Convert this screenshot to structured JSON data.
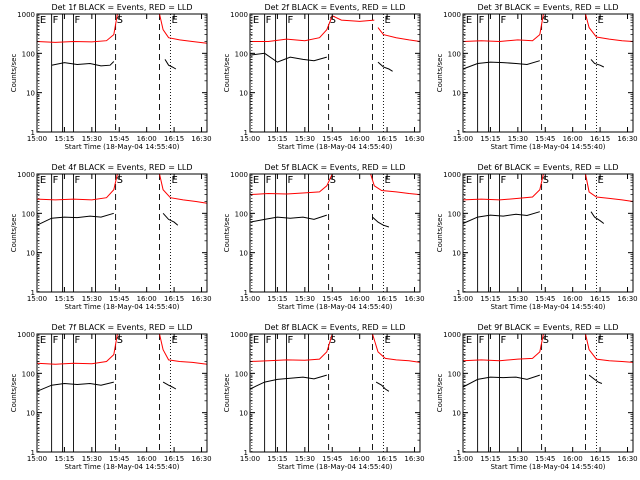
{
  "colors": {
    "events": "#000000",
    "lld": "#ff0000",
    "axes": "#000000",
    "background": "#ffffff"
  },
  "common": {
    "xlabel": "Start Time (18-May-04 14:55:40)",
    "ylabel": "Counts/sec",
    "x_ticks": [
      "15:00",
      "15:15",
      "15:30",
      "15:45",
      "16:00",
      "16:15",
      "16:30"
    ],
    "y_ticks": [
      "1",
      "10",
      "100",
      "1000"
    ],
    "yscale": "log",
    "ylim": [
      1,
      1000
    ],
    "xlim": [
      "15:00",
      "16:33"
    ],
    "markers": [
      {
        "label": "E",
        "time": "15:01",
        "style": "dotted"
      },
      {
        "label": "F",
        "time": "15:08",
        "style": "solid"
      },
      {
        "label": "F",
        "time": "15:20",
        "style": "solid"
      },
      {
        "label": "S",
        "time": "15:43",
        "style": "dashed"
      },
      {
        "label": "E",
        "time": "16:13",
        "style": "dotted"
      }
    ],
    "extra_lines": [
      {
        "time": "15:14",
        "style": "solid"
      },
      {
        "time": "15:32",
        "style": "solid"
      },
      {
        "time": "16:07",
        "style": "dashed"
      }
    ]
  },
  "chart_data": [
    {
      "type": "line",
      "title": "Det 1f BLACK = Events, RED = LLD",
      "series": [
        {
          "name": "Events",
          "color": "#000000",
          "segments": [
            {
              "x": [
                "15:08",
                "15:15",
                "15:22",
                "15:29",
                "15:35",
                "15:40",
                "15:42"
              ],
              "y": [
                50,
                58,
                52,
                55,
                48,
                50,
                62
              ]
            },
            {
              "x": [
                "16:10",
                "16:12",
                "16:14",
                "16:16"
              ],
              "y": [
                70,
                50,
                45,
                40
              ]
            }
          ]
        },
        {
          "name": "LLD",
          "color": "#ff0000",
          "segments": [
            {
              "x": [
                "15:00",
                "15:10",
                "15:20",
                "15:30",
                "15:38",
                "15:42",
                "15:44"
              ],
              "y": [
                200,
                190,
                200,
                195,
                210,
                300,
                1000
              ]
            },
            {
              "x": [
                "16:07",
                "16:09",
                "16:12",
                "16:18",
                "16:25",
                "16:33"
              ],
              "y": [
                1000,
                400,
                250,
                220,
                200,
                180
              ]
            }
          ]
        }
      ]
    },
    {
      "type": "line",
      "title": "Det 2f BLACK = Events, RED = LLD",
      "series": [
        {
          "name": "Events",
          "color": "#000000",
          "segments": [
            {
              "x": [
                "15:00",
                "15:08",
                "15:15",
                "15:22",
                "15:29",
                "15:35",
                "15:42"
              ],
              "y": [
                90,
                100,
                60,
                80,
                70,
                65,
                80
              ]
            },
            {
              "x": [
                "16:10",
                "16:13",
                "16:16",
                "16:18"
              ],
              "y": [
                60,
                45,
                40,
                35
              ]
            }
          ]
        },
        {
          "name": "LLD",
          "color": "#ff0000",
          "segments": [
            {
              "x": [
                "15:00",
                "15:10",
                "15:20",
                "15:30",
                "15:38",
                "15:42",
                "15:45",
                "15:50",
                "16:00",
                "16:08"
              ],
              "y": [
                200,
                200,
                230,
                210,
                250,
                400,
                900,
                700,
                650,
                700
              ]
            },
            {
              "x": [
                "16:10",
                "16:13",
                "16:20",
                "16:27",
                "16:33"
              ],
              "y": [
                450,
                300,
                250,
                220,
                200
              ]
            }
          ]
        }
      ]
    },
    {
      "type": "line",
      "title": "Det 3f BLACK = Events, RED = LLD",
      "series": [
        {
          "name": "Events",
          "color": "#000000",
          "segments": [
            {
              "x": [
                "15:00",
                "15:08",
                "15:15",
                "15:22",
                "15:29",
                "15:35",
                "15:42"
              ],
              "y": [
                40,
                55,
                60,
                58,
                55,
                52,
                65
              ]
            },
            {
              "x": [
                "16:10",
                "16:12",
                "16:15",
                "16:17"
              ],
              "y": [
                70,
                55,
                50,
                45
              ]
            }
          ]
        },
        {
          "name": "LLD",
          "color": "#ff0000",
          "segments": [
            {
              "x": [
                "15:00",
                "15:10",
                "15:20",
                "15:30",
                "15:38",
                "15:42",
                "15:44"
              ],
              "y": [
                200,
                210,
                200,
                220,
                210,
                300,
                1000
              ]
            },
            {
              "x": [
                "16:07",
                "16:09",
                "16:13",
                "16:20",
                "16:27",
                "16:33"
              ],
              "y": [
                1000,
                450,
                260,
                230,
                210,
                200
              ]
            }
          ]
        }
      ]
    },
    {
      "type": "line",
      "title": "Det 4f BLACK = Events, RED = LLD",
      "series": [
        {
          "name": "Events",
          "color": "#000000",
          "segments": [
            {
              "x": [
                "15:00",
                "15:08",
                "15:15",
                "15:22",
                "15:29",
                "15:35",
                "15:42"
              ],
              "y": [
                50,
                75,
                80,
                78,
                85,
                80,
                100
              ]
            },
            {
              "x": [
                "16:09",
                "16:12",
                "16:15",
                "16:17"
              ],
              "y": [
                100,
                70,
                60,
                50
              ]
            }
          ]
        },
        {
          "name": "LLD",
          "color": "#ff0000",
          "segments": [
            {
              "x": [
                "15:00",
                "15:10",
                "15:20",
                "15:30",
                "15:38",
                "15:42",
                "15:44"
              ],
              "y": [
                230,
                220,
                230,
                220,
                250,
                400,
                1000
              ]
            },
            {
              "x": [
                "16:07",
                "16:09",
                "16:13",
                "16:20",
                "16:27",
                "16:33"
              ],
              "y": [
                1000,
                400,
                250,
                220,
                200,
                180
              ]
            }
          ]
        }
      ]
    },
    {
      "type": "line",
      "title": "Det 5f BLACK = Events, RED = LLD",
      "series": [
        {
          "name": "Events",
          "color": "#000000",
          "segments": [
            {
              "x": [
                "15:00",
                "15:08",
                "15:15",
                "15:22",
                "15:29",
                "15:35",
                "15:42"
              ],
              "y": [
                60,
                70,
                80,
                75,
                80,
                70,
                90
              ]
            },
            {
              "x": [
                "16:07",
                "16:10",
                "16:13",
                "16:16"
              ],
              "y": [
                80,
                60,
                50,
                45
              ]
            }
          ]
        },
        {
          "name": "LLD",
          "color": "#ff0000",
          "segments": [
            {
              "x": [
                "15:00",
                "15:10",
                "15:20",
                "15:30",
                "15:38",
                "15:42",
                "15:45"
              ],
              "y": [
                300,
                320,
                310,
                330,
                350,
                500,
                1000
              ]
            },
            {
              "x": [
                "16:06",
                "16:08",
                "16:12",
                "16:20",
                "16:27",
                "16:33"
              ],
              "y": [
                1000,
                500,
                380,
                350,
                320,
                300
              ]
            }
          ]
        }
      ]
    },
    {
      "type": "line",
      "title": "Det 6f BLACK = Events, RED = LLD",
      "series": [
        {
          "name": "Events",
          "color": "#000000",
          "segments": [
            {
              "x": [
                "15:00",
                "15:08",
                "15:15",
                "15:22",
                "15:29",
                "15:35",
                "15:42"
              ],
              "y": [
                55,
                80,
                90,
                85,
                95,
                88,
                110
              ]
            },
            {
              "x": [
                "16:10",
                "16:12",
                "16:15",
                "16:17"
              ],
              "y": [
                110,
                80,
                65,
                55
              ]
            }
          ]
        },
        {
          "name": "LLD",
          "color": "#ff0000",
          "segments": [
            {
              "x": [
                "15:00",
                "15:10",
                "15:20",
                "15:30",
                "15:38",
                "15:42",
                "15:44"
              ],
              "y": [
                220,
                230,
                220,
                240,
                260,
                400,
                1000
              ]
            },
            {
              "x": [
                "16:07",
                "16:09",
                "16:13",
                "16:20",
                "16:27",
                "16:33"
              ],
              "y": [
                1000,
                350,
                260,
                240,
                220,
                200
              ]
            }
          ]
        }
      ]
    },
    {
      "type": "line",
      "title": "Det 7f BLACK = Events, RED = LLD",
      "series": [
        {
          "name": "Events",
          "color": "#000000",
          "segments": [
            {
              "x": [
                "15:00",
                "15:08",
                "15:15",
                "15:22",
                "15:29",
                "15:35",
                "15:42"
              ],
              "y": [
                35,
                50,
                55,
                52,
                55,
                50,
                60
              ]
            },
            {
              "x": [
                "16:09",
                "16:12",
                "16:14",
                "16:16"
              ],
              "y": [
                60,
                50,
                45,
                40
              ]
            }
          ]
        },
        {
          "name": "LLD",
          "color": "#ff0000",
          "segments": [
            {
              "x": [
                "15:00",
                "15:10",
                "15:20",
                "15:30",
                "15:38",
                "15:42",
                "15:44"
              ],
              "y": [
                180,
                170,
                180,
                175,
                200,
                300,
                1000
              ]
            },
            {
              "x": [
                "16:07",
                "16:09",
                "16:12",
                "16:18",
                "16:25",
                "16:33"
              ],
              "y": [
                1000,
                400,
                220,
                200,
                190,
                170
              ]
            }
          ]
        }
      ]
    },
    {
      "type": "line",
      "title": "Det 8f BLACK = Events, RED = LLD",
      "series": [
        {
          "name": "Events",
          "color": "#000000",
          "segments": [
            {
              "x": [
                "15:00",
                "15:08",
                "15:15",
                "15:22",
                "15:29",
                "15:35",
                "15:42"
              ],
              "y": [
                40,
                60,
                70,
                75,
                80,
                72,
                90
              ]
            },
            {
              "x": [
                "16:09",
                "16:12",
                "16:14",
                "16:16"
              ],
              "y": [
                60,
                50,
                40,
                35
              ]
            }
          ]
        },
        {
          "name": "LLD",
          "color": "#ff0000",
          "segments": [
            {
              "x": [
                "15:00",
                "15:10",
                "15:20",
                "15:30",
                "15:38",
                "15:42",
                "15:45"
              ],
              "y": [
                200,
                210,
                220,
                215,
                230,
                350,
                1000
              ]
            },
            {
              "x": [
                "16:07",
                "16:10",
                "16:14",
                "16:20",
                "16:27",
                "16:33"
              ],
              "y": [
                1000,
                350,
                240,
                220,
                210,
                190
              ]
            }
          ]
        }
      ]
    },
    {
      "type": "line",
      "title": "Det 9f BLACK = Events, RED = LLD",
      "series": [
        {
          "name": "Events",
          "color": "#000000",
          "segments": [
            {
              "x": [
                "15:00",
                "15:08",
                "15:15",
                "15:22",
                "15:29",
                "15:35",
                "15:42"
              ],
              "y": [
                45,
                70,
                80,
                78,
                80,
                70,
                90
              ]
            },
            {
              "x": [
                "16:09",
                "16:12",
                "16:14",
                "16:16"
              ],
              "y": [
                90,
                70,
                60,
                55
              ]
            }
          ]
        },
        {
          "name": "LLD",
          "color": "#ff0000",
          "segments": [
            {
              "x": [
                "15:00",
                "15:10",
                "15:20",
                "15:30",
                "15:38",
                "15:42",
                "15:44"
              ],
              "y": [
                210,
                220,
                210,
                230,
                240,
                350,
                1000
              ]
            },
            {
              "x": [
                "16:07",
                "16:09",
                "16:13",
                "16:20",
                "16:27",
                "16:33"
              ],
              "y": [
                1000,
                400,
                230,
                210,
                200,
                190
              ]
            }
          ]
        }
      ]
    }
  ]
}
